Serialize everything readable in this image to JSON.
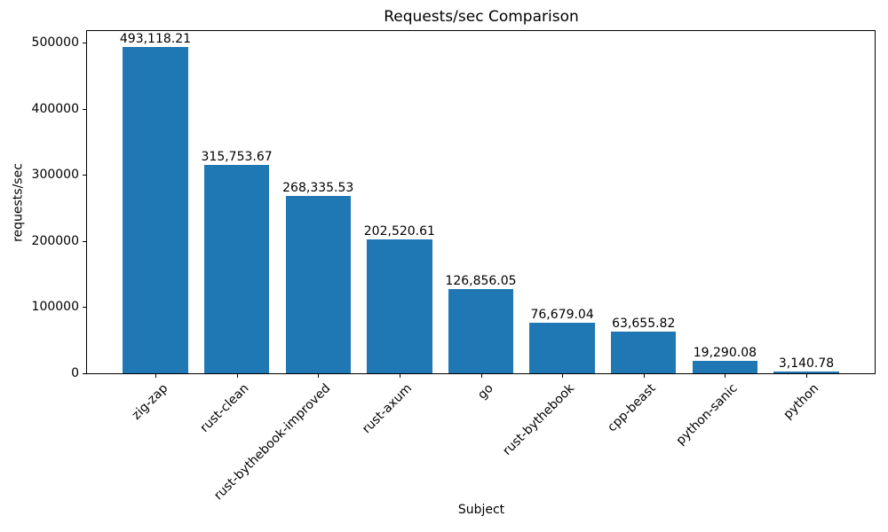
{
  "chart_data": {
    "type": "bar",
    "title": "Requests/sec Comparison",
    "xlabel": "Subject",
    "ylabel": "requests/sec",
    "categories": [
      "zig-zap",
      "rust-clean",
      "rust-bythebook-improved",
      "rust-axum",
      "go",
      "rust-bythebook",
      "cpp-beast",
      "python-sanic",
      "python"
    ],
    "values": [
      493118.21,
      315753.67,
      268335.53,
      202520.61,
      126856.05,
      76679.04,
      63655.82,
      19290.08,
      3140.78
    ],
    "value_labels": [
      "493,118.21",
      "315,753.67",
      "268,335.53",
      "202,520.61",
      "126,856.05",
      "76,679.04",
      "63,655.82",
      "19,290.08",
      "3,140.78"
    ],
    "yticks": [
      0,
      100000,
      200000,
      300000,
      400000,
      500000
    ],
    "ytick_labels": [
      "0",
      "100000",
      "200000",
      "300000",
      "400000",
      "500000"
    ],
    "ylim": [
      0,
      517774
    ],
    "bar_color": "#1f77b4",
    "grid": false,
    "legend_position": "none",
    "background_color": "#ffffff",
    "text_color": "#000000"
  }
}
